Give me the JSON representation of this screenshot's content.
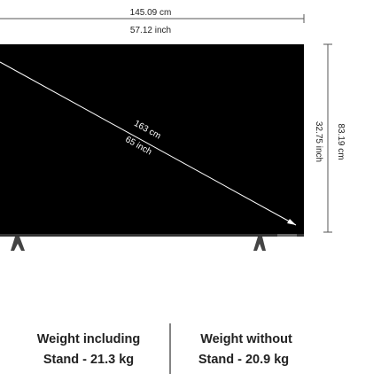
{
  "dimensions": {
    "width_cm": "145.09 cm",
    "width_inch": "57.12 inch",
    "diagonal_cm": "163 cm",
    "diagonal_inch": "65 inch",
    "height_cm": "83.19 cm",
    "height_inch": "32.75 inch"
  },
  "weights": [
    {
      "line1": "Weight including",
      "line2": "Stand - 21.3 kg"
    },
    {
      "line1": "Weight without",
      "line2": "Stand - 20.9 kg"
    }
  ]
}
